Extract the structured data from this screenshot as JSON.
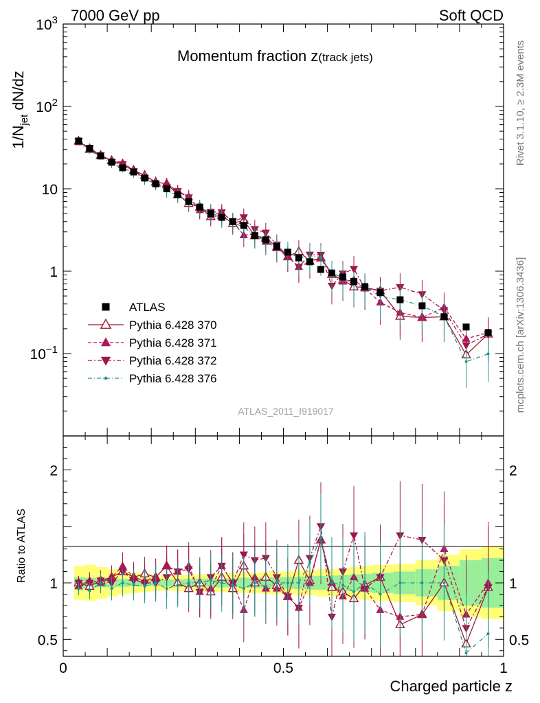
{
  "header": {
    "left": "7000 GeV pp",
    "right": "Soft QCD"
  },
  "side_labels": {
    "rivet": "Rivet 3.1.10, ≥ 2.3M events",
    "ref": "mcplots.cern.ch [arXiv:1306.3436]"
  },
  "chart_data": {
    "type": "scatter",
    "title_main": "Momentum fraction ",
    "title_var": "z",
    "title_sub": "(track jets)",
    "ylabel": "1/N_jet dN/dz",
    "ratio_ylabel": "Ratio to ATLAS",
    "xlabel": "Charged particle z",
    "watermark": "ATLAS_2011_I919017",
    "xlim": [
      0,
      1
    ],
    "ylim_main": [
      0.01,
      1000
    ],
    "yscale_main": "log",
    "ylim_ratio": [
      0.35,
      2.3
    ],
    "x_ticks": [
      "0",
      "0.5",
      "1"
    ],
    "y_ticks_main": [
      {
        "value": 0.1,
        "base": "10",
        "exp": "−1"
      },
      {
        "value": 1,
        "base": "1",
        "exp": ""
      },
      {
        "value": 10,
        "base": "10",
        "exp": ""
      },
      {
        "value": 100,
        "base": "10",
        "exp": "2"
      },
      {
        "value": 1000,
        "base": "10",
        "exp": "3"
      }
    ],
    "y_ticks_ratio": [
      {
        "value": 0.5,
        "label": "0.5"
      },
      {
        "value": 1,
        "label": "1"
      },
      {
        "value": 2,
        "label": "2"
      }
    ],
    "x": [
      0.035,
      0.06,
      0.085,
      0.11,
      0.135,
      0.16,
      0.185,
      0.21,
      0.235,
      0.26,
      0.285,
      0.31,
      0.335,
      0.36,
      0.385,
      0.41,
      0.435,
      0.46,
      0.485,
      0.51,
      0.535,
      0.56,
      0.585,
      0.61,
      0.635,
      0.66,
      0.685,
      0.72,
      0.765,
      0.815,
      0.865,
      0.915,
      0.965
    ],
    "bin_edges": [
      0.025,
      0.05,
      0.075,
      0.1,
      0.125,
      0.15,
      0.175,
      0.2,
      0.225,
      0.25,
      0.275,
      0.3,
      0.325,
      0.35,
      0.375,
      0.4,
      0.425,
      0.45,
      0.475,
      0.5,
      0.525,
      0.55,
      0.575,
      0.6,
      0.625,
      0.65,
      0.675,
      0.7,
      0.75,
      0.8,
      0.85,
      0.9,
      0.95,
      1.0
    ],
    "band_inner_halfwidth": [
      0.05,
      0.045,
      0.04,
      0.035,
      0.035,
      0.03,
      0.03,
      0.03,
      0.03,
      0.03,
      0.035,
      0.035,
      0.04,
      0.04,
      0.04,
      0.045,
      0.045,
      0.05,
      0.05,
      0.05,
      0.055,
      0.06,
      0.06,
      0.065,
      0.07,
      0.075,
      0.08,
      0.09,
      0.1,
      0.12,
      0.15,
      0.2,
      0.22
    ],
    "band_outer_halfwidth": [
      0.15,
      0.16,
      0.14,
      0.12,
      0.1,
      0.09,
      0.08,
      0.07,
      0.07,
      0.07,
      0.07,
      0.075,
      0.08,
      0.08,
      0.085,
      0.09,
      0.09,
      0.1,
      0.1,
      0.1,
      0.11,
      0.11,
      0.12,
      0.12,
      0.13,
      0.14,
      0.15,
      0.16,
      0.17,
      0.2,
      0.25,
      0.3,
      0.32
    ],
    "legend": [
      {
        "label": "ATLAS",
        "color": "#000000",
        "marker": "square",
        "dash": ""
      },
      {
        "label": "Pythia 6.428 370",
        "color": "#9b1b30",
        "marker": "tri-up-open",
        "dash": ""
      },
      {
        "label": "Pythia 6.428 371",
        "color": "#b0175c",
        "marker": "tri-up",
        "dash": "5,3"
      },
      {
        "label": "Pythia 6.428 372",
        "color": "#a0164a",
        "marker": "tri-down",
        "dash": "6,3,2,3"
      },
      {
        "label": "Pythia 6.428 376",
        "color": "#17998c",
        "marker": "dot",
        "dash": "6,3,1,3"
      }
    ],
    "series": [
      {
        "name": "ATLAS",
        "values": [
          38,
          31,
          25,
          21,
          18,
          16,
          13.5,
          11.5,
          10,
          8.5,
          7,
          6,
          5,
          4.5,
          4,
          3.6,
          2.7,
          2.4,
          2.0,
          1.7,
          1.45,
          1.3,
          1.05,
          0.95,
          0.85,
          0.75,
          0.65,
          0.55,
          0.45,
          0.38,
          0.28,
          0.21,
          0.18
        ]
      },
      {
        "name": "Pythia 6.428 370",
        "ratio": [
          1.0,
          0.97,
          1.02,
          1.05,
          1.1,
          1.05,
          1.08,
          1.05,
          1.15,
          1.0,
          0.95,
          1.0,
          0.92,
          1.05,
          0.95,
          1.15,
          1.0,
          1.05,
          0.98,
          0.88,
          1.2,
          1.02,
          1.38,
          0.96,
          0.92,
          0.86,
          0.98,
          1.05,
          0.63,
          0.72,
          1.0,
          0.46,
          0.96
        ]
      },
      {
        "name": "Pythia 6.428 371",
        "ratio": [
          0.97,
          1.02,
          1.0,
          1.05,
          1.15,
          1.05,
          1.02,
          1.05,
          1.15,
          1.1,
          1.15,
          0.92,
          0.95,
          1.15,
          1.0,
          0.76,
          1.05,
          0.95,
          0.95,
          0.88,
          0.78,
          1.0,
          1.38,
          1.0,
          0.88,
          1.05,
          0.95,
          0.76,
          0.7,
          0.72,
          1.3,
          0.72,
          1.0
        ]
      },
      {
        "name": "Pythia 6.428 372",
        "ratio": [
          1.0,
          1.0,
          1.02,
          1.0,
          1.1,
          1.02,
          1.0,
          1.0,
          1.05,
          1.1,
          1.12,
          0.92,
          1.05,
          1.15,
          1.0,
          1.25,
          1.2,
          1.22,
          1.05,
          0.88,
          0.78,
          1.22,
          1.5,
          0.7,
          1.1,
          1.42,
          0.95,
          1.05,
          1.42,
          1.38,
          1.2,
          0.6,
          0.96
        ]
      },
      {
        "name": "Pythia 6.428 376",
        "ratio": [
          0.95,
          0.93,
          1.0,
          0.95,
          1.0,
          0.98,
          0.97,
          1.0,
          0.95,
          0.98,
          1.0,
          1.0,
          1.02,
          1.0,
          0.98,
          0.95,
          1.0,
          0.97,
          1.0,
          1.0,
          1.0,
          1.18,
          1.4,
          1.0,
          0.98,
          0.92,
          1.0,
          0.9,
          1.0,
          1.0,
          1.0,
          0.38,
          0.55
        ]
      }
    ]
  }
}
